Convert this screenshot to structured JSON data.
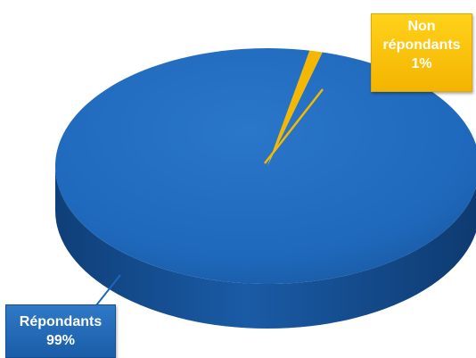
{
  "chart_data": {
    "type": "pie",
    "categories": [
      "Non répondants",
      "Répondants"
    ],
    "values": [
      1,
      99
    ],
    "value_labels": [
      "1%",
      "99%"
    ],
    "colors": [
      "#f5b800",
      "#1e66b8"
    ],
    "title": "",
    "style": "3d"
  },
  "labels": {
    "non_line1": "Non",
    "non_line2": "répondants",
    "non_pct": "1%",
    "rep_name": "Répondants",
    "rep_pct": "99%"
  }
}
